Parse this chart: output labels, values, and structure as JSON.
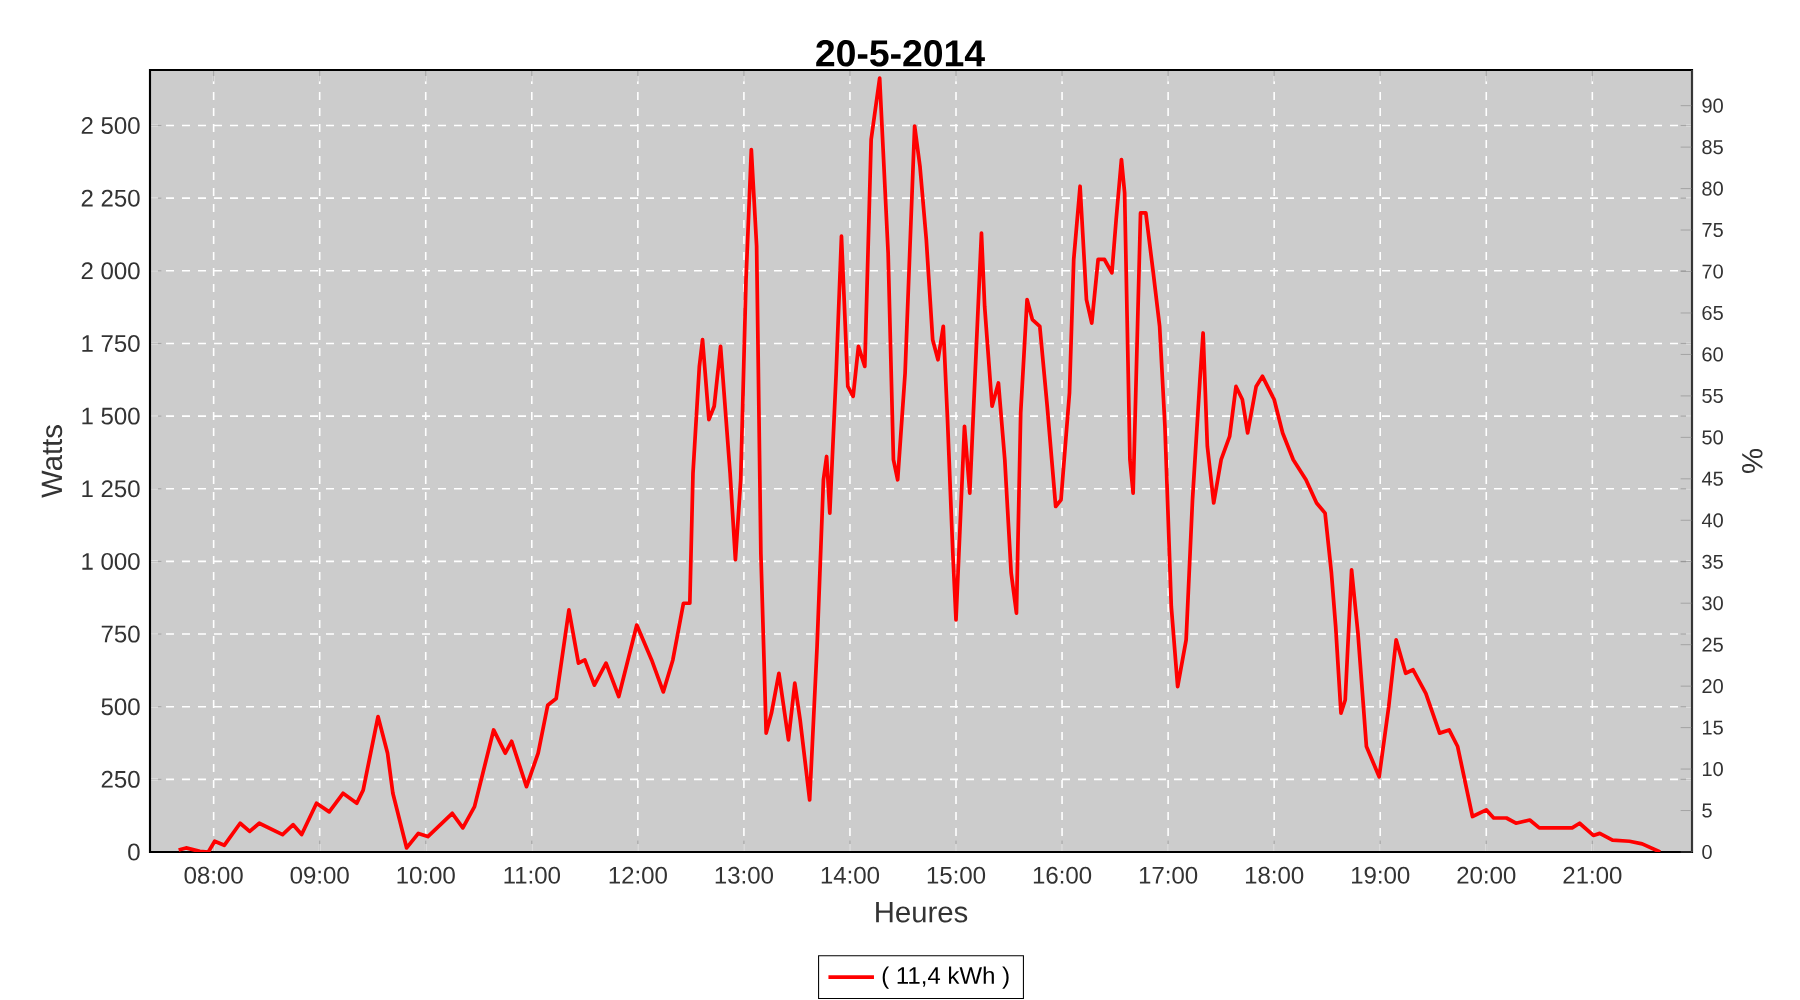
{
  "chart_data": {
    "type": "line",
    "title": "20-5-2014",
    "xlabel": "Heures",
    "ylabel": "Watts",
    "y2label": "%",
    "xlim": [
      7.4,
      21.94
    ],
    "ylim": [
      0,
      2691
    ],
    "y2lim": [
      0,
      94.3
    ],
    "xticks": [
      {
        "value": 8,
        "label": "08:00"
      },
      {
        "value": 9,
        "label": "09:00"
      },
      {
        "value": 10,
        "label": "10:00"
      },
      {
        "value": 11,
        "label": "11:00"
      },
      {
        "value": 12,
        "label": "12:00"
      },
      {
        "value": 13,
        "label": "13:00"
      },
      {
        "value": 14,
        "label": "14:00"
      },
      {
        "value": 15,
        "label": "15:00"
      },
      {
        "value": 16,
        "label": "16:00"
      },
      {
        "value": 17,
        "label": "17:00"
      },
      {
        "value": 18,
        "label": "18:00"
      },
      {
        "value": 19,
        "label": "19:00"
      },
      {
        "value": 20,
        "label": "20:00"
      },
      {
        "value": 21,
        "label": "21:00"
      }
    ],
    "yticks": [
      0,
      250,
      500,
      750,
      {
        "value": 1000,
        "label": "1 000"
      },
      {
        "value": 1250,
        "label": "1 250"
      },
      {
        "value": 1500,
        "label": "1 500"
      },
      {
        "value": 1750,
        "label": "1 750"
      },
      {
        "value": 2000,
        "label": "2 000"
      },
      {
        "value": 2250,
        "label": "2 250"
      },
      {
        "value": 2500,
        "label": "2 500"
      }
    ],
    "y2ticks": [
      0,
      5,
      10,
      15,
      20,
      25,
      30,
      35,
      40,
      45,
      50,
      55,
      60,
      65,
      70,
      75,
      80,
      85,
      90
    ],
    "grid": true,
    "legend": "bottom",
    "marker": "none",
    "line_style": "solid",
    "series": [
      {
        "name": "( 11,4 kWh )",
        "color": "#ff0000",
        "x": [
          7.67,
          7.74,
          7.87,
          7.95,
          8.01,
          8.1,
          8.25,
          8.34,
          8.43,
          8.65,
          8.75,
          8.83,
          8.97,
          9.09,
          9.22,
          9.35,
          9.41,
          9.55,
          9.64,
          9.69,
          9.82,
          9.93,
          10.02,
          10.25,
          10.35,
          10.46,
          10.64,
          10.75,
          10.81,
          10.95,
          11.06,
          11.15,
          11.23,
          11.35,
          11.44,
          11.5,
          11.59,
          11.7,
          11.82,
          11.99,
          12.13,
          12.24,
          12.33,
          12.43,
          12.49,
          12.52,
          12.58,
          12.61,
          12.67,
          12.72,
          12.78,
          12.87,
          12.92,
          12.97,
          13.02,
          13.07,
          13.12,
          13.16,
          13.21,
          13.26,
          13.33,
          13.42,
          13.48,
          13.53,
          13.62,
          13.69,
          13.75,
          13.78,
          13.81,
          13.87,
          13.92,
          13.98,
          14.03,
          14.08,
          14.14,
          14.2,
          14.28,
          14.36,
          14.41,
          14.45,
          14.52,
          14.61,
          14.66,
          14.72,
          14.78,
          14.83,
          14.88,
          14.92,
          14.97,
          15.0,
          15.03,
          15.08,
          15.13,
          15.24,
          15.27,
          15.34,
          15.4,
          15.46,
          15.52,
          15.57,
          15.61,
          15.67,
          15.72,
          15.79,
          15.86,
          15.94,
          15.99,
          16.07,
          16.11,
          16.17,
          16.23,
          16.28,
          16.34,
          16.4,
          16.47,
          16.51,
          16.56,
          16.59,
          16.64,
          16.67,
          16.74,
          16.79,
          16.86,
          16.92,
          16.97,
          17.03,
          17.09,
          17.17,
          17.23,
          17.3,
          17.33,
          17.37,
          17.43,
          17.5,
          17.58,
          17.64,
          17.7,
          17.75,
          17.83,
          17.89,
          18.0,
          18.08,
          18.18,
          18.3,
          18.4,
          18.48,
          18.54,
          18.58,
          18.63,
          18.67,
          18.73,
          18.79,
          18.87,
          18.99,
          19.08,
          19.15,
          19.24,
          19.31,
          19.43,
          19.56,
          19.65,
          19.73,
          19.87,
          20.0,
          20.07,
          20.19,
          20.28,
          20.41,
          20.5,
          20.81,
          20.88,
          21.01,
          21.07,
          21.19,
          21.35,
          21.47,
          21.64
        ],
        "values": [
          7,
          14,
          2,
          0,
          37,
          23,
          99,
          71,
          99,
          60,
          94,
          60,
          168,
          138,
          202,
          168,
          213,
          466,
          340,
          202,
          14,
          64,
          53,
          133,
          83,
          156,
          420,
          340,
          381,
          225,
          340,
          505,
          528,
          833,
          650,
          661,
          574,
          650,
          535,
          781,
          661,
          551,
          661,
          856,
          856,
          1304,
          1671,
          1763,
          1488,
          1534,
          1740,
          1304,
          1006,
          1281,
          1970,
          2417,
          2085,
          1028,
          409,
          478,
          615,
          386,
          581,
          455,
          179,
          707,
          1281,
          1361,
          1166,
          1648,
          2119,
          1602,
          1568,
          1740,
          1671,
          2452,
          2663,
          2062,
          1350,
          1281,
          1648,
          2498,
          2360,
          2107,
          1763,
          1694,
          1809,
          1488,
          1028,
          799,
          1051,
          1465,
          1235,
          2130,
          1878,
          1534,
          1614,
          1350,
          960,
          822,
          1511,
          1901,
          1832,
          1809,
          1534,
          1189,
          1212,
          1580,
          2039,
          2291,
          1901,
          1820,
          2039,
          2039,
          1993,
          2176,
          2383,
          2268,
          1350,
          1235,
          2199,
          2199,
          1993,
          1809,
          1465,
          845,
          569,
          730,
          1212,
          1625,
          1786,
          1396,
          1201,
          1350,
          1430,
          1602,
          1557,
          1442,
          1602,
          1637,
          1557,
          1442,
          1350,
          1281,
          1201,
          1166,
          960,
          776,
          478,
          523,
          971,
          753,
          363,
          259,
          500,
          730,
          615,
          627,
          546,
          409,
          420,
          363,
          122,
          145,
          117,
          117,
          99,
          110,
          83,
          83,
          99,
          57,
          64,
          41,
          37,
          28,
          0
        ]
      }
    ]
  }
}
